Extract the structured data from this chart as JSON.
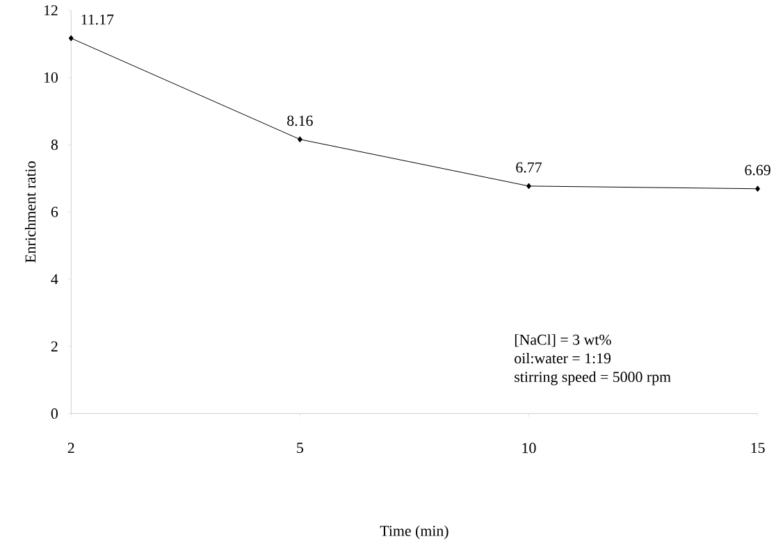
{
  "chart_data": {
    "type": "line",
    "xlabel": "Time (min)",
    "ylabel": "Enrichment ratio",
    "categories": [
      "2",
      "5",
      "10",
      "15"
    ],
    "values": [
      11.17,
      8.16,
      6.77,
      6.69
    ],
    "color": "#000000",
    "marker": "diamond",
    "line_style": "solid",
    "data_labels": true,
    "grid": false,
    "ylim": [
      0,
      12
    ],
    "yticks": [
      0,
      2,
      4,
      6,
      8,
      10,
      12
    ],
    "annotations": [
      "[NaCl] = 3 wt%",
      "oil:water = 1:19",
      "stirring speed = 5000 rpm"
    ]
  }
}
